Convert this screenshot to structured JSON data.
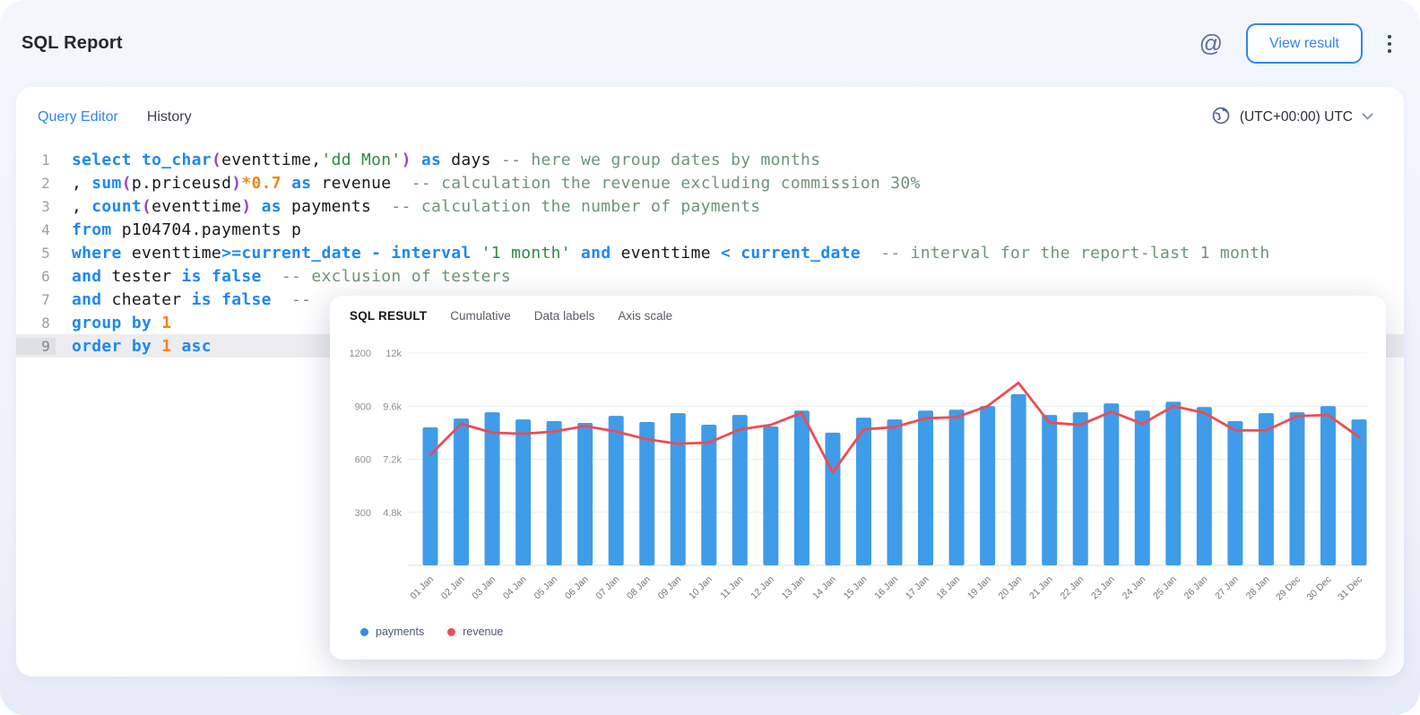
{
  "colors": {
    "accent": "#2f86ee",
    "bar": "#3f9ce9",
    "line": "#ef4b53",
    "active_line_bg": "#ededef"
  },
  "icons": {
    "at": "@",
    "kebab": "vertical-3-dots",
    "globe": "globe-outline",
    "chevron_down": "▾"
  },
  "header": {
    "title": "SQL Report",
    "view_result_label": "View result"
  },
  "editor": {
    "tabs": [
      {
        "label": "Query Editor",
        "active": true
      },
      {
        "label": "History",
        "active": false
      }
    ],
    "timezone_label": "(UTC+00:00) UTC",
    "lines": [
      {
        "n": "1",
        "active": false,
        "tokens": [
          [
            "kw",
            "select"
          ],
          [
            "pl",
            " "
          ],
          [
            "kw",
            "to_char"
          ],
          [
            "br",
            "("
          ],
          [
            "pl",
            "eventtime,"
          ],
          [
            "str",
            "'dd Mon'"
          ],
          [
            "br",
            ")"
          ],
          [
            "pl",
            " "
          ],
          [
            "kw",
            "as"
          ],
          [
            "pl",
            " days "
          ],
          [
            "cm",
            "-- here we group dates by months"
          ]
        ]
      },
      {
        "n": "2",
        "active": false,
        "tokens": [
          [
            "pl",
            ", "
          ],
          [
            "kw",
            "sum"
          ],
          [
            "br",
            "("
          ],
          [
            "pl",
            "p.priceusd"
          ],
          [
            "br",
            ")"
          ],
          [
            "num",
            "*0.7"
          ],
          [
            "pl",
            " "
          ],
          [
            "kw",
            "as"
          ],
          [
            "pl",
            " revenue  "
          ],
          [
            "cm",
            "-- calculation the revenue excluding commission 30%"
          ]
        ]
      },
      {
        "n": "3",
        "active": false,
        "tokens": [
          [
            "pl",
            ", "
          ],
          [
            "kw",
            "count"
          ],
          [
            "br",
            "("
          ],
          [
            "pl",
            "eventtime"
          ],
          [
            "br",
            ")"
          ],
          [
            "pl",
            " "
          ],
          [
            "kw",
            "as"
          ],
          [
            "pl",
            " payments  "
          ],
          [
            "cm",
            "-- calculation the number of payments"
          ]
        ]
      },
      {
        "n": "4",
        "active": false,
        "tokens": [
          [
            "kw",
            "from"
          ],
          [
            "pl",
            " p104704.payments p"
          ]
        ]
      },
      {
        "n": "5",
        "active": false,
        "tokens": [
          [
            "kw",
            "where"
          ],
          [
            "pl",
            " eventtime"
          ],
          [
            "op",
            ">="
          ],
          [
            "kw",
            "current_date"
          ],
          [
            "pl",
            " "
          ],
          [
            "op",
            "-"
          ],
          [
            "pl",
            " "
          ],
          [
            "kw",
            "interval"
          ],
          [
            "pl",
            " "
          ],
          [
            "str",
            "'1 month'"
          ],
          [
            "pl",
            " "
          ],
          [
            "kw",
            "and"
          ],
          [
            "pl",
            " eventtime "
          ],
          [
            "op",
            "<"
          ],
          [
            "pl",
            " "
          ],
          [
            "kw",
            "current_date"
          ],
          [
            "pl",
            "  "
          ],
          [
            "cm",
            "-- interval for the report-last 1 month"
          ]
        ]
      },
      {
        "n": "6",
        "active": false,
        "tokens": [
          [
            "kw",
            "and"
          ],
          [
            "pl",
            " tester "
          ],
          [
            "kw",
            "is"
          ],
          [
            "pl",
            " "
          ],
          [
            "kw",
            "false"
          ],
          [
            "pl",
            "  "
          ],
          [
            "cm",
            "-- exclusion of testers"
          ]
        ]
      },
      {
        "n": "7",
        "active": false,
        "tokens": [
          [
            "kw",
            "and"
          ],
          [
            "pl",
            " cheater "
          ],
          [
            "kw",
            "is"
          ],
          [
            "pl",
            " "
          ],
          [
            "kw",
            "false"
          ],
          [
            "pl",
            "  "
          ],
          [
            "cm",
            "--"
          ]
        ]
      },
      {
        "n": "8",
        "active": false,
        "tokens": [
          [
            "kw",
            "group"
          ],
          [
            "pl",
            " "
          ],
          [
            "kw",
            "by"
          ],
          [
            "pl",
            " "
          ],
          [
            "num",
            "1"
          ]
        ]
      },
      {
        "n": "9",
        "active": true,
        "tokens": [
          [
            "kw",
            "order"
          ],
          [
            "pl",
            " "
          ],
          [
            "kw",
            "by"
          ],
          [
            "pl",
            " "
          ],
          [
            "num",
            "1"
          ],
          [
            "pl",
            " "
          ],
          [
            "kw",
            "asc"
          ]
        ]
      }
    ]
  },
  "result_panel": {
    "title": "SQL RESULT",
    "tabs": [
      "Cumulative",
      "Data labels",
      "Axis scale"
    ],
    "legend": [
      {
        "label": "payments",
        "color": "#2f8fe8"
      },
      {
        "label": "revenue",
        "color": "#ef4b53"
      }
    ]
  },
  "chart_data": {
    "type": "bar",
    "subtype": "combo-bar-line-dual-axis",
    "title": "SQL RESULT",
    "xlabel": "",
    "ylabel": "",
    "grid": true,
    "legend_position": "bottom-left",
    "categories": [
      "01 Jan",
      "02 Jan",
      "03 Jan",
      "04 Jan",
      "05 Jan",
      "06 Jan",
      "07 Jan",
      "08 Jan",
      "09 Jan",
      "10 Jan",
      "11 Jan",
      "12 Jan",
      "13 Jan",
      "14 Jan",
      "15 Jan",
      "16 Jan",
      "17 Jan",
      "18 Jan",
      "19 Jan",
      "20 Jan",
      "21 Jan",
      "22 Jan",
      "23 Jan",
      "24 Jan",
      "25 Jan",
      "26 Jan",
      "27 Jan",
      "28 Jan",
      "29 Dec",
      "30 Dec",
      "31 Dec"
    ],
    "left_axis": {
      "tick_labels": [
        "1200",
        "900",
        "600",
        "300"
      ],
      "gridline_values": [
        1200,
        900,
        600,
        300
      ],
      "value_at_baseline": 0
    },
    "right_axis": {
      "tick_labels": [
        "12k",
        "9.6k",
        "7.2k",
        "4.8k"
      ],
      "gridline_values": [
        12000,
        9600,
        7200,
        4800
      ],
      "value_at_baseline": 2400
    },
    "series": [
      {
        "name": "payments",
        "type": "bar",
        "axis": "left",
        "color": "#3f9ce9",
        "values": [
          780,
          830,
          865,
          825,
          815,
          805,
          845,
          810,
          860,
          795,
          850,
          785,
          875,
          750,
          835,
          825,
          875,
          880,
          900,
          967,
          850,
          865,
          915,
          875,
          925,
          895,
          815,
          860,
          865,
          900,
          825
        ]
      },
      {
        "name": "revenue",
        "type": "line",
        "axis": "right",
        "color": "#ef4b53",
        "values": [
          7400,
          8800,
          8400,
          8350,
          8450,
          8700,
          8450,
          8100,
          7900,
          7950,
          8550,
          8750,
          9300,
          6600,
          8550,
          8650,
          9050,
          9100,
          9600,
          10650,
          8850,
          8750,
          9350,
          8800,
          9600,
          9300,
          8500,
          8500,
          9150,
          9200,
          8200
        ]
      }
    ]
  }
}
